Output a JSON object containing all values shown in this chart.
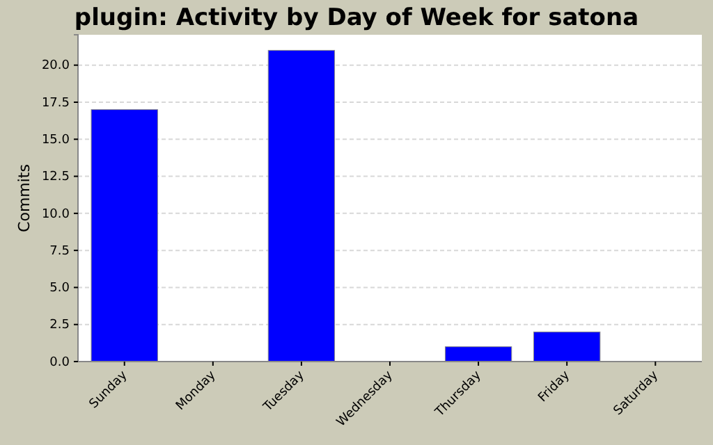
{
  "chart_data": {
    "type": "bar",
    "title": "plugin: Activity by Day of Week for satona",
    "ylabel": "Commits",
    "categories": [
      "Sunday",
      "Monday",
      "Tuesday",
      "Wednesday",
      "Thursday",
      "Friday",
      "Saturday"
    ],
    "values": [
      17,
      0,
      21,
      0,
      1,
      2,
      0
    ],
    "color": "#0000ff",
    "ylim": [
      0,
      22.05
    ],
    "yticks": [
      {
        "value": 0,
        "label": "0.0"
      },
      {
        "value": 2.5,
        "label": "2.5"
      },
      {
        "value": 5,
        "label": "5.0"
      },
      {
        "value": 7.5,
        "label": "7.5"
      },
      {
        "value": 10,
        "label": "10.0"
      },
      {
        "value": 12.5,
        "label": "12.5"
      },
      {
        "value": 15,
        "label": "15.0"
      },
      {
        "value": 17.5,
        "label": "17.5"
      },
      {
        "value": 20,
        "label": "20.0"
      }
    ],
    "grid": "y"
  }
}
